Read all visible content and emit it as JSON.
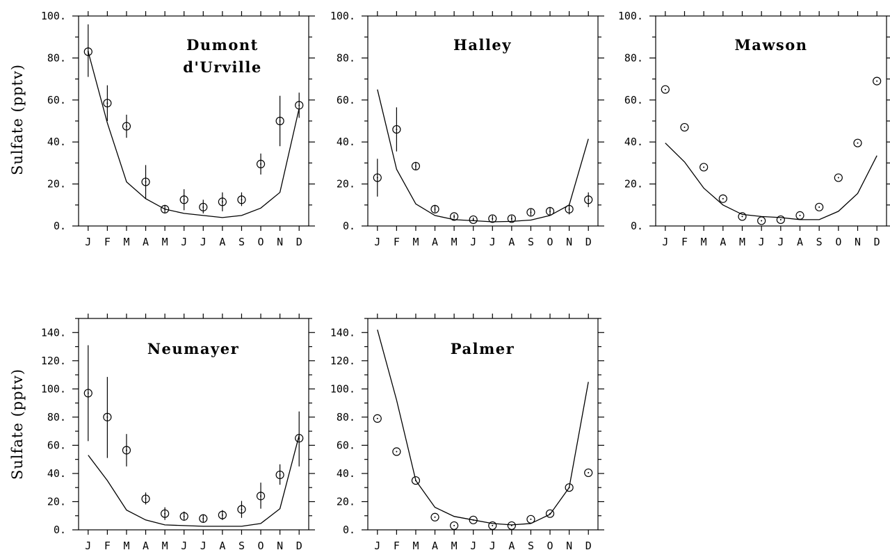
{
  "chart_data": [
    {
      "type": "line",
      "title": "Dumont\nd'Urville",
      "categories": [
        "J",
        "F",
        "M",
        "A",
        "M",
        "J",
        "J",
        "A",
        "S",
        "O",
        "N",
        "D"
      ],
      "ylabel": "Sulfate (pptv)",
      "ylim": [
        0,
        100
      ],
      "yticks": [
        0,
        20,
        40,
        60,
        80,
        100
      ],
      "ytick_labels": [
        "0.",
        "20.",
        "40.",
        "60.",
        "80.",
        "100."
      ],
      "series": [
        {
          "kind": "line",
          "values": [
            83,
            49,
            21,
            13,
            8,
            6,
            5,
            4,
            5,
            8.5,
            16,
            56
          ]
        },
        {
          "kind": "points",
          "values": [
            83,
            58.5,
            47.5,
            21,
            8,
            12.5,
            9,
            11.5,
            12.5,
            29.5,
            50,
            57.5
          ],
          "err_low": [
            71,
            50,
            42,
            13,
            6,
            7.5,
            6,
            7,
            9.5,
            24.5,
            38,
            51.5
          ],
          "err_high": [
            96,
            67,
            53,
            29,
            10,
            17.5,
            12.5,
            16,
            16,
            34.5,
            62,
            63.5
          ]
        }
      ]
    },
    {
      "type": "line",
      "title": "Halley",
      "categories": [
        "J",
        "F",
        "M",
        "A",
        "M",
        "J",
        "J",
        "A",
        "S",
        "O",
        "N",
        "D"
      ],
      "ylabel": "",
      "ylim": [
        0,
        100
      ],
      "yticks": [
        0,
        20,
        40,
        60,
        80,
        100
      ],
      "ytick_labels": [
        "0.",
        "20.",
        "40.",
        "60.",
        "80.",
        "100."
      ],
      "series": [
        {
          "kind": "line",
          "values": [
            65,
            27,
            10.5,
            5,
            3,
            2.5,
            2,
            2.2,
            2.8,
            5,
            10,
            41.5
          ]
        },
        {
          "kind": "points",
          "values": [
            23,
            46,
            28.5,
            8,
            4.5,
            3,
            3.5,
            3.5,
            6.5,
            7,
            8,
            12.5
          ],
          "err_low": [
            14,
            35.5,
            26.5,
            6.5,
            3.5,
            2.5,
            2.5,
            2.5,
            5,
            5,
            5.5,
            9
          ],
          "err_high": [
            32,
            56.5,
            30.5,
            10,
            5.5,
            4,
            5,
            5,
            8,
            9,
            10.5,
            16
          ]
        }
      ]
    },
    {
      "type": "line",
      "title": "Mawson",
      "categories": [
        "J",
        "F",
        "M",
        "A",
        "M",
        "J",
        "J",
        "A",
        "S",
        "O",
        "N",
        "D"
      ],
      "ylabel": "",
      "ylim": [
        0,
        100
      ],
      "yticks": [
        0,
        20,
        40,
        60,
        80,
        100
      ],
      "ytick_labels": [
        "0.",
        "20.",
        "40.",
        "60.",
        "80.",
        "100."
      ],
      "series": [
        {
          "kind": "line",
          "values": [
            39.5,
            30.5,
            18,
            10,
            5.5,
            4.5,
            4,
            3,
            3,
            7,
            15.5,
            33.5
          ]
        },
        {
          "kind": "points",
          "values": [
            65,
            47,
            28,
            13,
            4.5,
            2.5,
            3,
            5,
            9,
            23,
            39.5,
            69
          ]
        }
      ]
    },
    {
      "type": "line",
      "title": "Neumayer",
      "categories": [
        "J",
        "F",
        "M",
        "A",
        "M",
        "J",
        "J",
        "A",
        "S",
        "O",
        "N",
        "D"
      ],
      "ylabel": "Sulfate (pptv)",
      "ylim": [
        0,
        150
      ],
      "yticks": [
        0,
        20,
        40,
        60,
        80,
        100,
        120,
        140
      ],
      "ytick_labels": [
        "0.",
        "20.",
        "40.",
        "60.",
        "80.",
        "100.",
        "120.",
        "140."
      ],
      "series": [
        {
          "kind": "line",
          "values": [
            53,
            35,
            14,
            7,
            3.5,
            3,
            2.5,
            2.5,
            2.5,
            4.5,
            15,
            67
          ]
        },
        {
          "kind": "points",
          "values": [
            97,
            80,
            56.5,
            22,
            11.5,
            9.5,
            8,
            10.5,
            14.5,
            24,
            39,
            65
          ],
          "err_low": [
            63,
            51,
            45,
            18,
            7,
            6.5,
            5,
            7,
            8.5,
            15,
            32,
            45
          ],
          "err_high": [
            131,
            108.5,
            68,
            26.5,
            16,
            13,
            11,
            14,
            20.5,
            33.5,
            46.5,
            84
          ]
        }
      ]
    },
    {
      "type": "line",
      "title": "Palmer",
      "categories": [
        "J",
        "F",
        "M",
        "A",
        "M",
        "J",
        "J",
        "A",
        "S",
        "O",
        "N",
        "D"
      ],
      "ylabel": "",
      "ylim": [
        0,
        150
      ],
      "yticks": [
        0,
        20,
        40,
        60,
        80,
        100,
        120,
        140
      ],
      "ytick_labels": [
        "0.",
        "20.",
        "40.",
        "60.",
        "80.",
        "100.",
        "120.",
        "140."
      ],
      "series": [
        {
          "kind": "line",
          "values": [
            142,
            92,
            35,
            16,
            9.5,
            7,
            4.5,
            3.5,
            4.5,
            11,
            30,
            105
          ]
        },
        {
          "kind": "points",
          "values": [
            79,
            55.5,
            35,
            9,
            3,
            7,
            3,
            3,
            7.5,
            11.5,
            30,
            40.5
          ]
        }
      ]
    }
  ]
}
